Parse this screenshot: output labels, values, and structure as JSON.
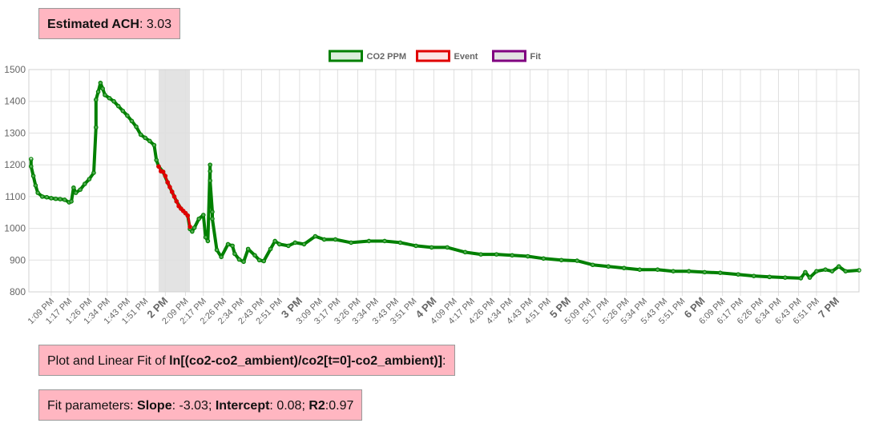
{
  "header": {
    "parts": [
      {
        "text": "Estimated ACH",
        "bold": true
      },
      {
        "text": ": ",
        "bold": false
      },
      {
        "text": 3.03,
        "bold": false
      }
    ]
  },
  "caption": {
    "parts": [
      {
        "text": "Plot and Linear Fit of ",
        "bold": false
      },
      {
        "text": "ln[(co2-co2_ambient)/co2[t=0]-co2_ambient)]",
        "bold": true
      },
      {
        "text": ":",
        "bold": false
      }
    ]
  },
  "fit": {
    "parts": [
      {
        "text": "Fit parameters: ",
        "bold": false
      },
      {
        "text": "Slope",
        "bold": true
      },
      {
        "text": ": ",
        "bold": false
      },
      {
        "text": -3.03,
        "bold": false
      },
      {
        "text": "; ",
        "bold": false
      },
      {
        "text": "Intercept",
        "bold": true
      },
      {
        "text": ": ",
        "bold": false
      },
      {
        "text": 0.08,
        "bold": false
      },
      {
        "text": "; ",
        "bold": false
      },
      {
        "text": "R2",
        "bold": true
      },
      {
        "text": ":",
        "bold": false
      },
      {
        "text": 0.97,
        "bold": false
      }
    ]
  },
  "chart_data": {
    "type": "scatter",
    "grid": true,
    "legend": "top",
    "xlim": [
      "12:59 PM",
      "7:10 PM"
    ],
    "ylim": [
      800,
      1500
    ],
    "yticks": [
      800,
      900,
      1000,
      1100,
      1200,
      1300,
      1400,
      1500
    ],
    "xticks": [
      "1:09 PM",
      "1:17 PM",
      "1:26 PM",
      "1:34 PM",
      "1:43 PM",
      "1:51 PM",
      "2 PM",
      "2:09 PM",
      "2:17 PM",
      "2:26 PM",
      "2:34 PM",
      "2:43 PM",
      "2:51 PM",
      "3 PM",
      "3:09 PM",
      "3:17 PM",
      "3:26 PM",
      "3:34 PM",
      "3:43 PM",
      "3:51 PM",
      "4 PM",
      "4:09 PM",
      "4:17 PM",
      "4:26 PM",
      "4:34 PM",
      "4:43 PM",
      "4:51 PM",
      "5 PM",
      "5:09 PM",
      "5:17 PM",
      "5:26 PM",
      "5:34 PM",
      "5:43 PM",
      "5:51 PM",
      "6 PM",
      "6:09 PM",
      "6:17 PM",
      "6:26 PM",
      "6:34 PM",
      "6:43 PM",
      "6:51 PM",
      "7 PM"
    ],
    "series": [
      {
        "name": "CO2 PPM",
        "color": "#008000",
        "fill": "#a8d8a8",
        "x": [
          "1:00 PM",
          "1:00 PM",
          "1:01 PM",
          "1:02 PM",
          "1:03 PM",
          "1:05 PM",
          "1:07 PM",
          "1:09 PM",
          "1:11 PM",
          "1:13 PM",
          "1:15 PM",
          "1:17 PM",
          "1:18 PM",
          "1:19 PM",
          "1:20 PM",
          "1:22 PM",
          "1:24 PM",
          "1:26 PM",
          "1:28 PM",
          "1:29 PM",
          "1:29 PM",
          "1:30 PM",
          "1:31 PM",
          "1:32 PM",
          "1:33 PM",
          "1:35 PM",
          "1:37 PM",
          "1:39 PM",
          "1:41 PM",
          "1:43 PM",
          "1:45 PM",
          "1:47 PM",
          "1:49 PM",
          "1:51 PM",
          "1:53 PM",
          "1:55 PM",
          "1:56 PM",
          "1:57 PM",
          "1:59 PM",
          "2:01 PM",
          "2:03 PM",
          "2:05 PM",
          "2:07 PM",
          "2:09 PM",
          "2:10 PM",
          "2:11 PM",
          "2:12 PM",
          "2:13 PM",
          "2:15 PM",
          "2:17 PM",
          "2:18 PM",
          "2:19 PM",
          "2:20 PM",
          "2:20 PM",
          "2:20 PM",
          "2:21 PM",
          "2:21 PM",
          "2:23 PM",
          "2:25 PM",
          "2:28 PM",
          "2:30 PM",
          "2:31 PM",
          "2:33 PM",
          "2:35 PM",
          "2:37 PM",
          "2:40 PM",
          "2:42 PM",
          "2:44 PM",
          "2:47 PM",
          "2:49 PM",
          "2:51 PM",
          "2:55 PM",
          "2:58 PM",
          "3:02 PM",
          "3:07 PM",
          "3:11 PM",
          "3:16 PM",
          "3:23 PM",
          "3:31 PM",
          "3:38 PM",
          "3:45 PM",
          "3:52 PM",
          "3:59 PM",
          "4:06 PM",
          "4:14 PM",
          "4:21 PM",
          "4:28 PM",
          "4:35 PM",
          "4:42 PM",
          "4:49 PM",
          "4:57 PM",
          "5:04 PM",
          "5:11 PM",
          "5:18 PM",
          "5:25 PM",
          "5:32 PM",
          "5:40 PM",
          "5:47 PM",
          "5:54 PM",
          "6:01 PM",
          "6:08 PM",
          "6:16 PM",
          "6:23 PM",
          "6:30 PM",
          "6:37 PM",
          "6:44 PM",
          "6:46 PM",
          "6:48 PM",
          "6:51 PM",
          "6:55 PM",
          "6:58 PM",
          "7:01 PM",
          "7:04 PM",
          "7:10 PM"
        ],
        "values": [
          1218,
          1195,
          1165,
          1135,
          1112,
          1100,
          1098,
          1095,
          1093,
          1092,
          1090,
          1082,
          1085,
          1128,
          1112,
          1122,
          1140,
          1155,
          1175,
          1318,
          1405,
          1430,
          1458,
          1440,
          1420,
          1410,
          1400,
          1385,
          1370,
          1355,
          1338,
          1320,
          1295,
          1285,
          1275,
          1262,
          1215,
          1195,
          1178,
          1145,
          1115,
          1085,
          1062,
          1048,
          1040,
          998,
          990,
          1002,
          1030,
          1042,
          972,
          960,
          1200,
          1180,
          1150,
          1052,
          1030,
          932,
          910,
          950,
          945,
          920,
          902,
          895,
          935,
          915,
          900,
          897,
          935,
          960,
          950,
          945,
          955,
          950,
          975,
          965,
          965,
          955,
          960,
          960,
          955,
          945,
          940,
          940,
          925,
          918,
          918,
          915,
          912,
          905,
          900,
          898,
          885,
          880,
          875,
          870,
          870,
          865,
          865,
          862,
          860,
          855,
          850,
          847,
          845,
          843,
          862,
          845,
          865,
          870,
          865,
          880,
          865,
          868
        ]
      },
      {
        "name": "Event",
        "color": "#e00000",
        "fill": "#e00000",
        "x": [
          "1:57 PM",
          "1:58 PM",
          "1:59 PM",
          "2:00 PM",
          "2:01 PM",
          "2:02 PM",
          "2:03 PM",
          "2:04 PM",
          "2:05 PM",
          "2:06 PM",
          "2:07 PM",
          "2:08 PM",
          "2:09 PM",
          "2:10 PM",
          "2:11 PM"
        ],
        "values": [
          1195,
          1180,
          1178,
          1165,
          1145,
          1130,
          1115,
          1100,
          1085,
          1070,
          1062,
          1055,
          1048,
          1040,
          1005
        ]
      },
      {
        "name": "Fit",
        "color": "#800080",
        "fill": "#e3e3e3",
        "span": [
          "1:57 PM",
          "2:11 PM"
        ]
      }
    ]
  }
}
